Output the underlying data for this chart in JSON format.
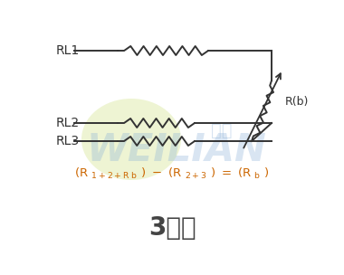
{
  "bg_color": "#ffffff",
  "title": "3线制",
  "title_fontsize": 20,
  "title_color": "#444444",
  "formula_color": "#cc6600",
  "label_RL1": "RL1",
  "label_RL2": "RL2",
  "label_RL3": "RL3",
  "label_Rb": "R(b)",
  "line_color": "#333333",
  "wm_green_color": "#d4e89a",
  "wm_blue_color": "#8ab0d8",
  "fig_w": 3.8,
  "fig_h": 3.04,
  "dpi": 100
}
